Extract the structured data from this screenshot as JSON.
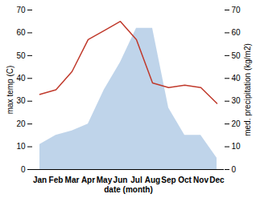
{
  "chart_data": {
    "type": "line",
    "xlabel": "date (month)",
    "ylabel": "max temp (C)",
    "y2label": "med. precipitation (kg/m2)",
    "categories": [
      "Jan",
      "Feb",
      "Mar",
      "Apr",
      "May",
      "Jun",
      "Jul",
      "Aug",
      "Sep",
      "Oct",
      "Nov",
      "Dec"
    ],
    "series": [
      {
        "type": "area",
        "axis": "y2",
        "color": "#b8cfe8",
        "values": [
          11,
          15,
          17,
          20,
          35,
          47,
          62,
          62,
          27,
          15,
          15,
          5
        ]
      },
      {
        "type": "line",
        "color": "#c0392b",
        "values": [
          33,
          35,
          43,
          57,
          61,
          65,
          57,
          38,
          36,
          37,
          36,
          29
        ]
      }
    ],
    "ylim": [
      0,
      70
    ],
    "yticks": [
      0,
      10,
      20,
      30,
      40,
      50,
      60,
      70
    ],
    "y2lim": [
      0,
      70
    ],
    "y2ticks": [
      0,
      10,
      20,
      30,
      40,
      50,
      60,
      70
    ]
  }
}
